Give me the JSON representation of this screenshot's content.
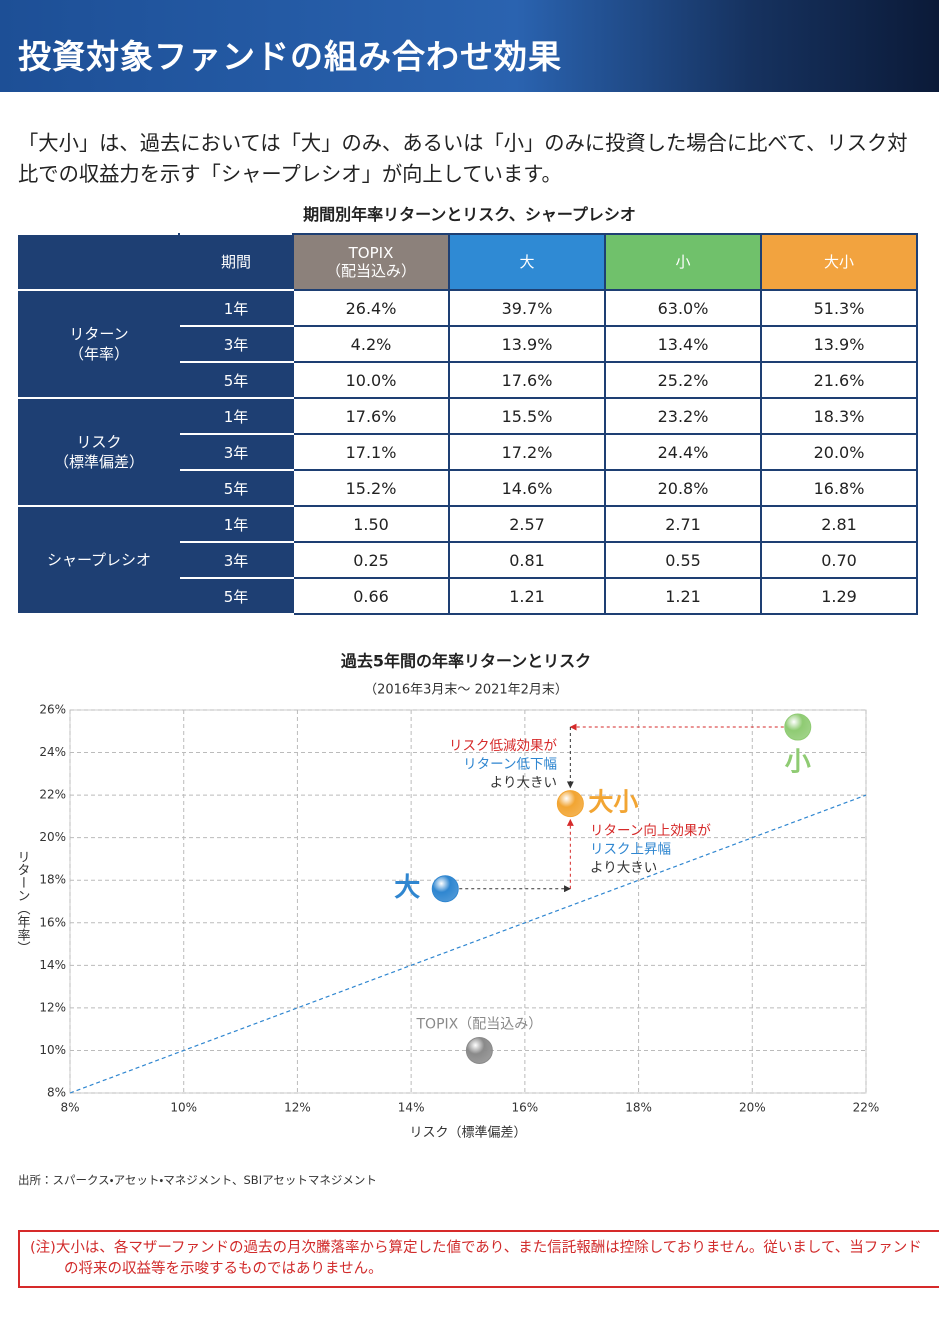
{
  "header": {
    "title": "投資対象ファンドの組み合わせ効果"
  },
  "intro": "「大小」は、過去においては「大」のみ、あるいは「小」のみに投資した場合に比べて、リスク対比での収益力を示す「シャープレシオ」が向上しています。",
  "table": {
    "title": "期間別年率リターンとリスク、シャープレシオ",
    "period_header": "期間",
    "funds": [
      {
        "name": "TOPIX",
        "sub": "（配当込み）",
        "color": "#8c817b"
      },
      {
        "name": "大",
        "color": "#2f8ad4"
      },
      {
        "name": "小",
        "color": "#70c16b"
      },
      {
        "name": "大小",
        "color": "#f2a33f"
      }
    ],
    "groups": [
      {
        "label": "リターン",
        "sub": "（年率）",
        "rows": [
          {
            "period": "1年",
            "values": [
              "26.4%",
              "39.7%",
              "63.0%",
              "51.3%"
            ]
          },
          {
            "period": "3年",
            "values": [
              "4.2%",
              "13.9%",
              "13.4%",
              "13.9%"
            ]
          },
          {
            "period": "5年",
            "values": [
              "10.0%",
              "17.6%",
              "25.2%",
              "21.6%"
            ]
          }
        ]
      },
      {
        "label": "リスク",
        "sub": "（標準偏差）",
        "rows": [
          {
            "period": "1年",
            "values": [
              "17.6%",
              "15.5%",
              "23.2%",
              "18.3%"
            ]
          },
          {
            "period": "3年",
            "values": [
              "17.1%",
              "17.2%",
              "24.4%",
              "20.0%"
            ]
          },
          {
            "period": "5年",
            "values": [
              "15.2%",
              "14.6%",
              "20.8%",
              "16.8%"
            ]
          }
        ]
      },
      {
        "label": "シャープレシオ",
        "rows": [
          {
            "period": "1年",
            "values": [
              "1.50",
              "2.57",
              "2.71",
              "2.81"
            ]
          },
          {
            "period": "3年",
            "values": [
              "0.25",
              "0.81",
              "0.55",
              "0.70"
            ]
          },
          {
            "period": "5年",
            "values": [
              "0.66",
              "1.21",
              "1.21",
              "1.29"
            ]
          }
        ]
      }
    ]
  },
  "chart_data": {
    "type": "scatter",
    "title": "過去5年間の年率リターンとリスク",
    "subtitle": "（2016年3月末～ 2021年2月末）",
    "x_label": "リスク（標準偏差）",
    "y_label": "リターン（年率）",
    "xlim": [
      8,
      22
    ],
    "ylim": [
      8,
      26
    ],
    "xticks": [
      {
        "value": 8,
        "label": "8%"
      },
      {
        "value": 10,
        "label": "10%"
      },
      {
        "value": 12,
        "label": "12%"
      },
      {
        "value": 14,
        "label": "14%"
      },
      {
        "value": 16,
        "label": "16%"
      },
      {
        "value": 18,
        "label": "18%"
      },
      {
        "value": 20,
        "label": "20%"
      },
      {
        "value": 22,
        "label": "22%"
      }
    ],
    "yticks": [
      {
        "value": 8,
        "label": "8%"
      },
      {
        "value": 10,
        "label": "10%"
      },
      {
        "value": 12,
        "label": "12%"
      },
      {
        "value": 14,
        "label": "14%"
      },
      {
        "value": 16,
        "label": "16%"
      },
      {
        "value": 18,
        "label": "18%"
      },
      {
        "value": 20,
        "label": "20%"
      },
      {
        "value": 22,
        "label": "22%"
      },
      {
        "value": 24,
        "label": "24%"
      },
      {
        "value": 26,
        "label": "26%"
      }
    ],
    "grid": true,
    "series": [
      {
        "name": "大",
        "color": "#2f86d0",
        "x": [
          14.6
        ],
        "y": [
          17.6
        ]
      },
      {
        "name": "小",
        "color": "#8fcb73",
        "x": [
          20.8
        ],
        "y": [
          25.2
        ]
      },
      {
        "name": "大小",
        "color": "#f2a533",
        "x": [
          16.8
        ],
        "y": [
          21.6
        ]
      },
      {
        "name": "TOPIX（配当込み）",
        "color": "#8a8a8a",
        "x": [
          15.2
        ],
        "y": [
          10.0
        ]
      }
    ],
    "reference_line": {
      "x": [
        8,
        22
      ],
      "y": [
        8,
        22
      ],
      "color": "#2f86d0"
    },
    "annotations": [
      [
        "リスク低減効果が",
        "リターン低下幅",
        "より大きい"
      ],
      [
        "リターン向上効果が",
        "リスク上昇幅",
        "より大きい"
      ]
    ]
  },
  "source": "出所：スパークス・アセット・マネジメント、SBIアセットマネジメント",
  "note": "(注)大小は、各マザーファンドの過去の月次騰落率から算定した値であり、また信託報酬は控除しておりません。従いまして、当ファンドの将来の収益等を示唆するものではありません。"
}
